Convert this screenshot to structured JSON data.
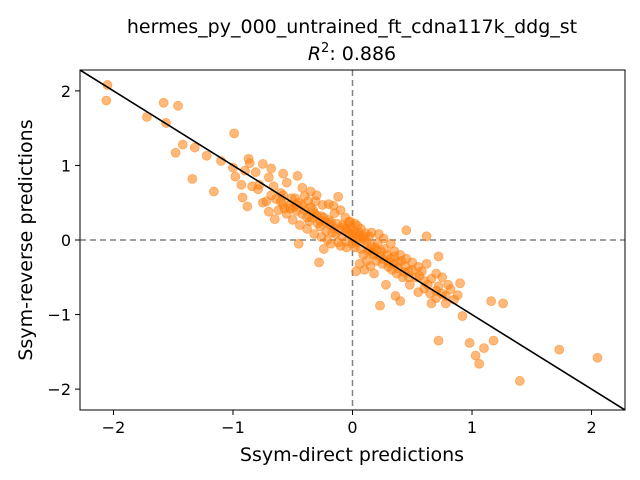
{
  "chart_data": {
    "type": "scatter",
    "title": "hermes_py_000_untrained_ft_cdna117k_ddg_st",
    "subtitle_prefix": "R",
    "subtitle_sup": "2",
    "subtitle_value": ": 0.886",
    "xlabel": "Ssym-direct predictions",
    "ylabel": "Ssym-reverse predictions",
    "xlim": [
      -2.28,
      2.28
    ],
    "ylim": [
      -2.28,
      2.28
    ],
    "xticks": [
      -2,
      -1,
      0,
      1,
      2
    ],
    "yticks": [
      -2,
      -1,
      0,
      1,
      2
    ],
    "xtick_labels": [
      "−2",
      "−1",
      "0",
      "1",
      "2"
    ],
    "ytick_labels": [
      "−2",
      "−1",
      "0",
      "1",
      "2"
    ],
    "point_color": "#ff7f0e",
    "point_alpha": 0.55,
    "reference_line": {
      "slope": -1,
      "intercept": 0,
      "color": "#000000"
    },
    "zero_lines_color": "#808080",
    "points": [
      [
        -2.05,
        2.08
      ],
      [
        -2.06,
        1.87
      ],
      [
        -1.72,
        1.65
      ],
      [
        -1.58,
        1.84
      ],
      [
        -1.46,
        1.8
      ],
      [
        -1.56,
        1.57
      ],
      [
        -1.42,
        1.28
      ],
      [
        -1.48,
        1.17
      ],
      [
        -1.32,
        1.24
      ],
      [
        -1.22,
        1.13
      ],
      [
        -1.34,
        0.82
      ],
      [
        -1.16,
        0.65
      ],
      [
        -1.1,
        1.06
      ],
      [
        -0.99,
        1.43
      ],
      [
        -0.98,
        0.85
      ],
      [
        -0.9,
        0.93
      ],
      [
        -0.87,
        1.09
      ],
      [
        -0.86,
        1.03
      ],
      [
        -0.78,
        0.74
      ],
      [
        -0.75,
        1.02
      ],
      [
        -0.92,
        0.57
      ],
      [
        -0.88,
        0.45
      ],
      [
        -0.75,
        0.5
      ],
      [
        -0.7,
        0.38
      ],
      [
        -0.65,
        0.28
      ],
      [
        -0.93,
        0.74
      ],
      [
        -0.81,
        0.91
      ],
      [
        -0.7,
        0.84
      ],
      [
        -0.66,
        0.72
      ],
      [
        -0.6,
        0.63
      ],
      [
        -0.55,
        0.77
      ],
      [
        -0.51,
        0.56
      ],
      [
        -0.46,
        0.86
      ],
      [
        -0.4,
        0.59
      ],
      [
        -0.35,
        0.44
      ],
      [
        -0.3,
        0.33
      ],
      [
        -0.25,
        0.47
      ],
      [
        -0.2,
        0.27
      ],
      [
        -0.15,
        0.36
      ],
      [
        -0.12,
        0.58
      ],
      [
        -0.08,
        0.2
      ],
      [
        -0.05,
        0.15
      ],
      [
        -0.02,
        0.08
      ],
      [
        0.0,
        0.02
      ],
      [
        0.03,
        -0.03
      ],
      [
        -0.6,
        0.52
      ],
      [
        -0.58,
        0.48
      ],
      [
        -0.52,
        0.42
      ],
      [
        -0.49,
        0.44
      ],
      [
        -0.47,
        0.39
      ],
      [
        -0.45,
        0.5
      ],
      [
        -0.42,
        0.35
      ],
      [
        -0.38,
        0.3
      ],
      [
        -0.36,
        0.25
      ],
      [
        -0.33,
        0.4
      ],
      [
        -0.31,
        0.52
      ],
      [
        -0.29,
        0.22
      ],
      [
        -0.27,
        0.18
      ],
      [
        -0.24,
        0.3
      ],
      [
        -0.22,
        0.12
      ],
      [
        -0.19,
        0.2
      ],
      [
        -0.17,
        0.1
      ],
      [
        -0.14,
        0.08
      ],
      [
        -0.11,
        0.14
      ],
      [
        -0.09,
        0.05
      ],
      [
        -0.06,
        0.3
      ],
      [
        -0.04,
        0.12
      ],
      [
        -0.01,
        0.18
      ],
      [
        0.02,
        0.22
      ],
      [
        0.05,
        0.1
      ],
      [
        0.07,
        0.15
      ],
      [
        0.09,
        0.05
      ],
      [
        0.12,
        -0.02
      ],
      [
        0.14,
        0.05
      ],
      [
        0.16,
        -0.08
      ],
      [
        0.19,
        -0.1
      ],
      [
        0.21,
        -0.04
      ],
      [
        0.24,
        -0.15
      ],
      [
        0.27,
        -0.12
      ],
      [
        0.29,
        -0.2
      ],
      [
        0.32,
        -0.25
      ],
      [
        0.35,
        -0.22
      ],
      [
        0.38,
        -0.3
      ],
      [
        0.41,
        -0.28
      ],
      [
        0.44,
        -0.35
      ],
      [
        0.47,
        -0.42
      ],
      [
        0.5,
        -0.4
      ],
      [
        0.53,
        -0.5
      ],
      [
        0.56,
        -0.48
      ],
      [
        0.6,
        -0.55
      ],
      [
        0.63,
        -0.6
      ],
      [
        0.66,
        -0.52
      ],
      [
        0.7,
        -0.68
      ],
      [
        0.72,
        -0.62
      ],
      [
        0.75,
        -0.72
      ],
      [
        0.78,
        -0.75
      ],
      [
        0.82,
        -0.66
      ],
      [
        0.85,
        -0.8
      ],
      [
        0.9,
        -0.58
      ],
      [
        0.88,
        -0.74
      ],
      [
        -0.28,
        -0.3
      ],
      [
        -0.45,
        -0.05
      ],
      [
        -0.24,
        -0.12
      ],
      [
        -0.12,
        -0.03
      ],
      [
        0.03,
        -0.42
      ],
      [
        0.1,
        -0.4
      ],
      [
        0.18,
        -0.45
      ],
      [
        0.28,
        -0.6
      ],
      [
        0.36,
        -0.75
      ],
      [
        0.4,
        -0.82
      ],
      [
        0.48,
        -0.6
      ],
      [
        0.55,
        -0.7
      ],
      [
        0.65,
        -0.72
      ],
      [
        0.7,
        -0.78
      ],
      [
        0.78,
        -0.85
      ],
      [
        0.23,
        -0.88
      ],
      [
        0.45,
        0.13
      ],
      [
        0.62,
        -0.32
      ],
      [
        0.7,
        -0.45
      ],
      [
        0.72,
        -0.22
      ],
      [
        0.62,
        0.05
      ],
      [
        0.32,
        -0.05
      ],
      [
        0.26,
        0.02
      ],
      [
        0.22,
        0.08
      ],
      [
        0.16,
        0.1
      ],
      [
        0.07,
        -0.12
      ],
      [
        0.09,
        -0.2
      ],
      [
        0.12,
        -0.28
      ],
      [
        0.06,
        -0.32
      ],
      [
        0.15,
        -0.35
      ],
      [
        0.92,
        -1.02
      ],
      [
        0.98,
        -1.38
      ],
      [
        1.03,
        -1.55
      ],
      [
        1.06,
        -1.66
      ],
      [
        1.1,
        -1.45
      ],
      [
        1.18,
        -1.35
      ],
      [
        1.16,
        -0.82
      ],
      [
        1.26,
        -0.85
      ],
      [
        0.72,
        -1.35
      ],
      [
        1.4,
        -1.89
      ],
      [
        1.73,
        -1.47
      ],
      [
        2.05,
        -1.58
      ],
      [
        -1.0,
        0.97
      ],
      [
        -0.68,
        0.96
      ],
      [
        -0.58,
        0.89
      ],
      [
        -0.35,
        0.65
      ],
      [
        -0.2,
        0.48
      ],
      [
        -0.1,
        0.4
      ],
      [
        -0.3,
        0.6
      ],
      [
        -0.16,
        0.46
      ],
      [
        -0.42,
        0.7
      ],
      [
        -0.58,
        0.6
      ],
      [
        -0.62,
        0.4
      ],
      [
        -0.55,
        0.35
      ],
      [
        -0.5,
        0.27
      ],
      [
        -0.44,
        0.2
      ],
      [
        -0.38,
        0.15
      ],
      [
        -0.32,
        0.08
      ],
      [
        -0.26,
        0.04
      ],
      [
        -0.21,
        0.0
      ],
      [
        -0.18,
        -0.05
      ],
      [
        -0.1,
        -0.08
      ],
      [
        -0.05,
        -0.1
      ],
      [
        0.0,
        -0.05
      ],
      [
        0.04,
        0.04
      ],
      [
        0.08,
        0.02
      ],
      [
        0.11,
        0.09
      ],
      [
        0.13,
        -0.15
      ],
      [
        0.18,
        -0.2
      ],
      [
        0.2,
        -0.28
      ],
      [
        0.25,
        -0.32
      ],
      [
        0.3,
        -0.36
      ],
      [
        0.33,
        -0.4
      ],
      [
        0.37,
        -0.45
      ],
      [
        0.42,
        -0.5
      ],
      [
        -0.32,
        0.36
      ],
      [
        -0.26,
        0.32
      ],
      [
        -0.18,
        0.24
      ],
      [
        -0.13,
        0.22
      ],
      [
        -0.07,
        0.17
      ],
      [
        -0.03,
        0.24
      ],
      [
        0.01,
        0.12
      ],
      [
        0.04,
        0.19
      ],
      [
        0.06,
        0.07
      ],
      [
        0.1,
        0.0
      ],
      [
        -0.37,
        0.52
      ],
      [
        -0.42,
        0.47
      ],
      [
        -0.48,
        0.56
      ],
      [
        -0.53,
        0.46
      ],
      [
        -0.57,
        0.42
      ],
      [
        -0.64,
        0.55
      ],
      [
        -0.68,
        0.6
      ],
      [
        -0.72,
        0.52
      ],
      [
        -0.79,
        0.68
      ],
      [
        -0.84,
        0.72
      ],
      [
        0.35,
        -0.15
      ],
      [
        0.4,
        -0.2
      ],
      [
        0.45,
        -0.25
      ],
      [
        0.5,
        -0.3
      ],
      [
        0.55,
        -0.36
      ],
      [
        0.58,
        -0.42
      ],
      [
        0.6,
        -0.65
      ],
      [
        0.66,
        -0.85
      ],
      [
        0.8,
        -0.6
      ],
      [
        0.75,
        -0.5
      ],
      [
        -0.05,
        -0.02
      ],
      [
        0.0,
        0.08
      ],
      [
        -0.02,
        0.25
      ],
      [
        0.02,
        -0.1
      ],
      [
        -0.15,
        0.16
      ],
      [
        -0.23,
        0.24
      ],
      [
        -0.27,
        0.26
      ],
      [
        -0.34,
        0.3
      ],
      [
        -0.4,
        0.4
      ],
      [
        -0.47,
        0.47
      ],
      [
        0.14,
        -0.12
      ],
      [
        0.17,
        -0.18
      ],
      [
        0.2,
        -0.14
      ],
      [
        0.23,
        -0.22
      ],
      [
        0.26,
        -0.26
      ],
      [
        0.3,
        -0.3
      ],
      [
        0.34,
        -0.32
      ],
      [
        0.38,
        -0.38
      ],
      [
        0.43,
        -0.43
      ],
      [
        0.47,
        -0.5
      ]
    ]
  }
}
